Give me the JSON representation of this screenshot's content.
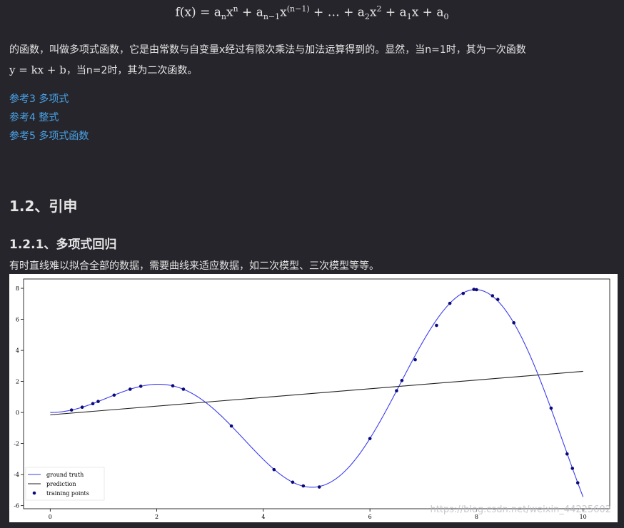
{
  "article": {
    "formula_parts": {
      "lhs": "f(x) = ",
      "a": "a",
      "n": "n",
      "x": "x",
      "n1": "n−1",
      "paren_n1": "(n−1)",
      "dots": " + … + ",
      "two": "2",
      "one": "1",
      "zero": "0",
      "plus": " + "
    },
    "para1_line1": "的函数，叫做多项式函数，它是由常数与自变量x经过有限次乘法与加法运算得到的。显然，当n=1时，其为一次函数",
    "para1_line2_math": "y = kx + b",
    "para1_line2_text": "，当n=2时，其为二次函数。",
    "links": [
      "参考3 多项式",
      "参考4 整式",
      "参考5 多项式函数"
    ],
    "heading_2": "1.2、引申",
    "heading_3": "1.2.1、多项式回归",
    "para2": "有时直线难以拟合全部的数据，需要曲线来适应数据，如二次模型、三次模型等等。",
    "watermark": "https://blog.csdn.net/weixin_44225602"
  },
  "chart_data": {
    "type": "line",
    "xlim": [
      -0.5,
      10.5
    ],
    "ylim": [
      -6.2,
      8.6
    ],
    "x_ticks": [
      0,
      2,
      4,
      6,
      8,
      10
    ],
    "y_ticks": [
      -6,
      -4,
      -2,
      0,
      2,
      4,
      6,
      8
    ],
    "legend_position": "bottom-left",
    "legend": [
      "ground truth",
      "prediction",
      "training points"
    ],
    "series": [
      {
        "name": "ground truth",
        "color": "#3c3cf0",
        "function": "x*sin(x)",
        "x_range": [
          0,
          10
        ]
      },
      {
        "name": "prediction",
        "color": "#222222",
        "x": [
          0,
          10
        ],
        "y": [
          -0.15,
          2.65
        ]
      },
      {
        "name": "training points",
        "color": "#0a0a7a",
        "x": [
          0.4,
          0.6,
          0.8,
          0.9,
          1.2,
          1.5,
          1.7,
          2.3,
          2.5,
          3.4,
          4.2,
          4.55,
          4.75,
          5.05,
          6.0,
          6.5,
          6.6,
          6.85,
          7.25,
          7.5,
          7.75,
          7.95,
          8.0,
          8.3,
          8.4,
          8.7,
          9.4,
          9.7,
          9.8,
          9.9
        ],
        "y": [
          0.16,
          0.34,
          0.57,
          0.71,
          1.12,
          1.5,
          1.69,
          1.72,
          1.5,
          -0.87,
          -3.68,
          -4.49,
          -4.73,
          -4.8,
          -1.68,
          1.4,
          2.06,
          3.4,
          5.61,
          7.03,
          7.67,
          7.93,
          7.91,
          7.52,
          7.28,
          5.78,
          0.28,
          -2.67,
          -3.6,
          -4.53
        ]
      }
    ]
  }
}
